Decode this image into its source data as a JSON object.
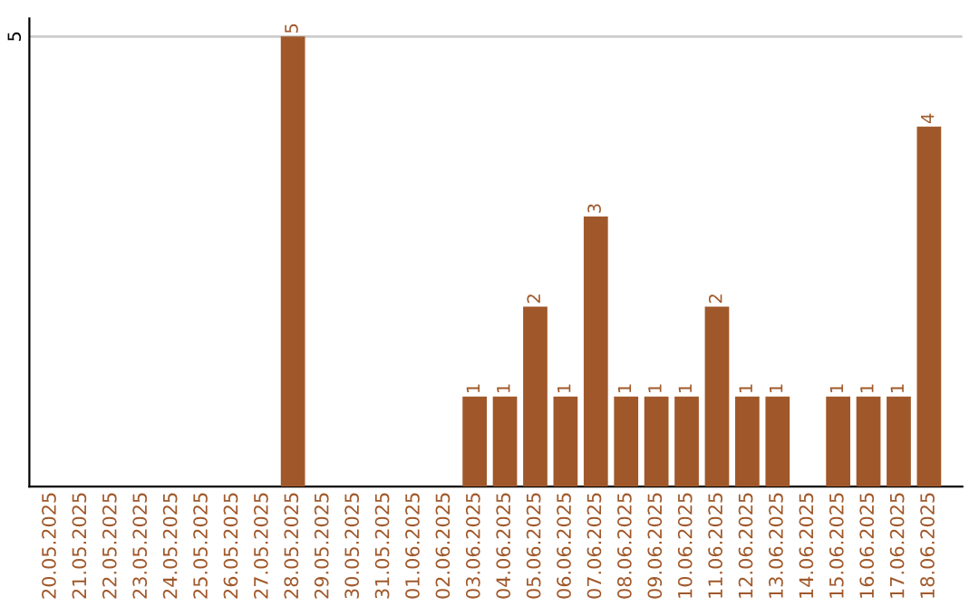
{
  "chart_data": {
    "type": "bar",
    "categories": [
      "20.05.2025",
      "21.05.2025",
      "22.05.2025",
      "23.05.2025",
      "24.05.2025",
      "25.05.2025",
      "26.05.2025",
      "27.05.2025",
      "28.05.2025",
      "29.05.2025",
      "30.05.2025",
      "31.05.2025",
      "01.06.2025",
      "02.06.2025",
      "03.06.2025",
      "04.06.2025",
      "05.06.2025",
      "06.06.2025",
      "07.06.2025",
      "08.06.2025",
      "09.06.2025",
      "10.06.2025",
      "11.06.2025",
      "12.06.2025",
      "13.06.2025",
      "14.06.2025",
      "15.06.2025",
      "16.06.2025",
      "17.06.2025",
      "18.06.2025"
    ],
    "values": [
      0,
      0,
      0,
      0,
      0,
      0,
      0,
      0,
      5,
      0,
      0,
      0,
      0,
      0,
      1,
      1,
      2,
      1,
      3,
      1,
      1,
      1,
      2,
      1,
      1,
      0,
      1,
      1,
      1,
      4
    ],
    "value_labels": [
      null,
      null,
      null,
      null,
      null,
      null,
      null,
      null,
      "5",
      null,
      null,
      null,
      null,
      null,
      "1",
      "1",
      "2",
      "1",
      "3",
      "1",
      "1",
      "1",
      "2",
      "1",
      "1",
      null,
      "1",
      "1",
      "1",
      "4"
    ],
    "color": "#a0582a",
    "ylim": [
      0,
      5.2
    ],
    "yticks": [
      5
    ],
    "grid": "y"
  }
}
